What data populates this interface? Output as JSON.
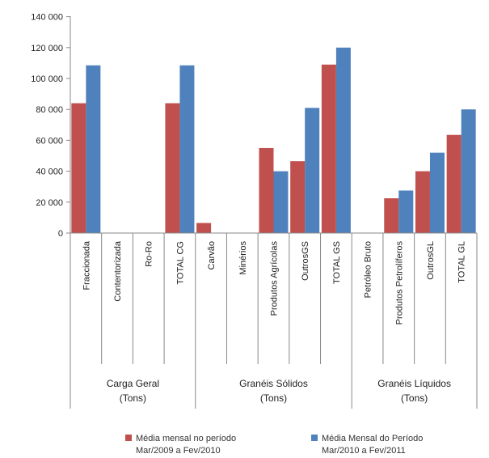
{
  "chart_data": {
    "type": "bar",
    "y_ticks": [
      "0",
      "20 000",
      "40 000",
      "60 000",
      "80 000",
      "100 000",
      "120 000",
      "140 000"
    ],
    "ylim": [
      0,
      120000
    ],
    "grid": false,
    "legend_position": "bottom",
    "groups": [
      {
        "label_line1": "Carga Geral",
        "label_line2": "(Tons)",
        "categories": [
          "Fraccionada",
          "Contentorizada",
          "Ro-Ro",
          "TOTAL CG"
        ]
      },
      {
        "label_line1": "Granéis Sólidos",
        "label_line2": "(Tons)",
        "categories": [
          "Carvão",
          "Minérios",
          "Produtos Agrícolas",
          "OutrosGS",
          "TOTAL GS"
        ]
      },
      {
        "label_line1": "Granéis Líquidos",
        "label_line2": "(Tons)",
        "categories": [
          "Petróleo Bruto",
          "Produtos Petrolíferos",
          "OutrosGL",
          "TOTAL GL"
        ]
      }
    ],
    "categories": [
      "Fraccionada",
      "Contentorizada",
      "Ro-Ro",
      "TOTAL CG",
      "Carvão",
      "Minérios",
      "Produtos Agrícolas",
      "OutrosGS",
      "TOTAL GS",
      "Petróleo Bruto",
      "Produtos Petrolíferos",
      "OutrosGL",
      "TOTAL GL"
    ],
    "series": [
      {
        "name_line1": "Média mensal no período",
        "name_line2": "Mar/2009 a Fev/2010",
        "color": "#c0504d",
        "values": [
          84000,
          0,
          0,
          84000,
          6500,
          0,
          55000,
          46500,
          109000,
          0,
          22500,
          40000,
          63500
        ]
      },
      {
        "name_line1": "Média Mensal do Período",
        "name_line2": "Mar/2010 a Fev/2011",
        "color": "#4f81bd",
        "values": [
          108500,
          0,
          0,
          108500,
          0,
          0,
          40000,
          81000,
          120000,
          0,
          27500,
          52000,
          80000
        ]
      }
    ]
  }
}
